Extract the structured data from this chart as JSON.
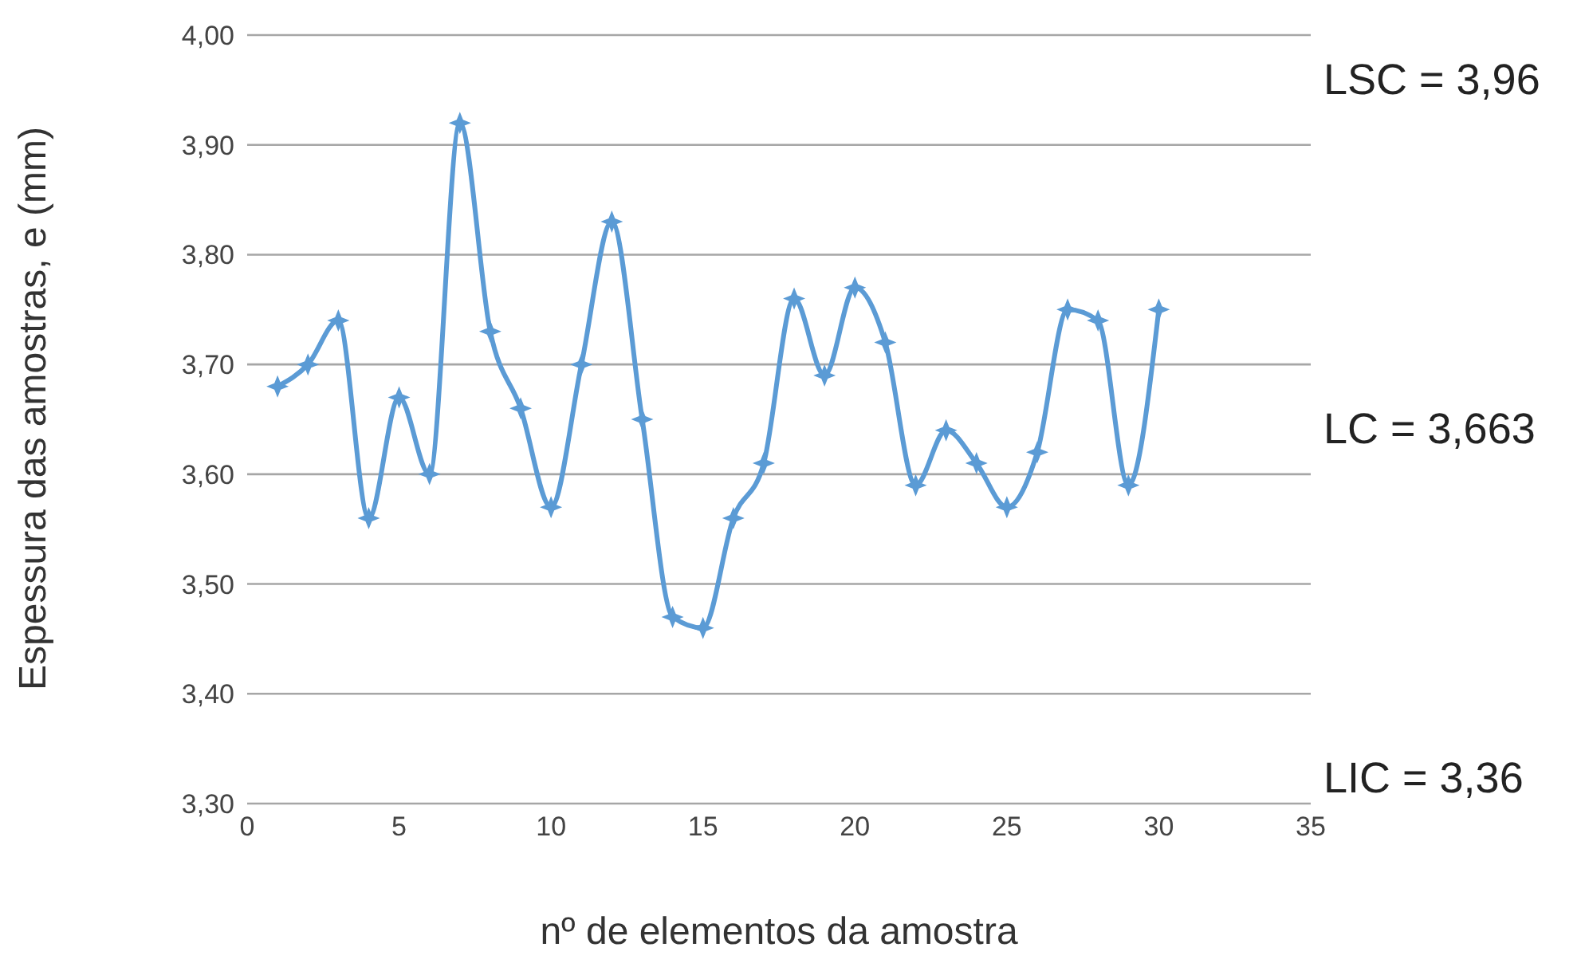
{
  "chart_data": {
    "type": "line",
    "xlabel": "nº de elementos da amostra",
    "ylabel": "Espessura das amostras, e (mm)",
    "x": [
      1,
      2,
      3,
      4,
      5,
      6,
      7,
      8,
      9,
      10,
      11,
      12,
      13,
      14,
      15,
      16,
      17,
      18,
      19,
      20,
      21,
      22,
      23,
      24,
      25,
      26,
      27,
      28,
      29,
      30
    ],
    "series": [
      {
        "color": "#5b9bd5",
        "values": [
          3.68,
          3.7,
          3.74,
          3.56,
          3.67,
          3.6,
          3.92,
          3.73,
          3.66,
          3.57,
          3.7,
          3.83,
          3.65,
          3.47,
          3.46,
          3.56,
          3.61,
          3.76,
          3.69,
          3.77,
          3.72,
          3.59,
          3.64,
          3.61,
          3.57,
          3.62,
          3.75,
          3.74,
          3.59,
          3.75
        ]
      }
    ],
    "xlim": [
      0,
      35
    ],
    "xticks": [
      0,
      5,
      10,
      15,
      20,
      25,
      30,
      35
    ],
    "ylim": [
      3.3,
      4.0
    ],
    "yticks": [
      {
        "value": 3.3,
        "label": "3,30"
      },
      {
        "value": 3.4,
        "label": "3,40"
      },
      {
        "value": 3.5,
        "label": "3,50"
      },
      {
        "value": 3.6,
        "label": "3,60"
      },
      {
        "value": 3.7,
        "label": "3,70"
      },
      {
        "value": 3.8,
        "label": "3,80"
      },
      {
        "value": 3.9,
        "label": "3,90"
      },
      {
        "value": 4.0,
        "label": "4,00"
      }
    ],
    "grid": "y",
    "marker": "diamond",
    "line_style": "solid",
    "legend": false,
    "annotations": [
      "LSC = 3,96",
      "LC = 3,663",
      "LIC = 3,36"
    ]
  }
}
